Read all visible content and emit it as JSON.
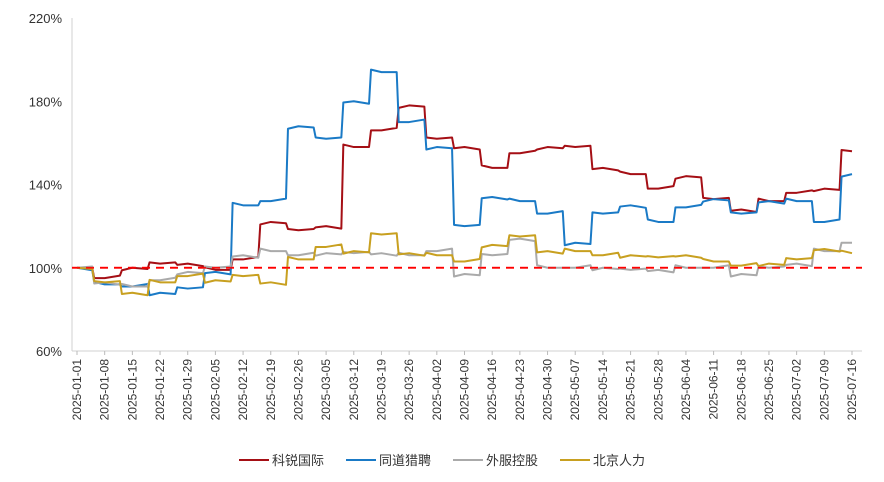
{
  "chart_data": {
    "type": "line",
    "title": "",
    "xlabel": "",
    "ylabel": "",
    "ylim": [
      0.6,
      2.2
    ],
    "y_ticks": [
      "60%",
      "100%",
      "140%",
      "180%",
      "220%"
    ],
    "x_ticks": [
      "2025-01-01",
      "2025-01-08",
      "2025-01-15",
      "2025-01-22",
      "2025-01-29",
      "2025-02-05",
      "2025-02-12",
      "2025-02-19",
      "2025-02-26",
      "2025-03-05",
      "2025-03-12",
      "2025-03-19",
      "2025-03-26",
      "2025-04-02",
      "2025-04-09",
      "2025-04-16",
      "2025-04-23",
      "2025-04-30",
      "2025-05-07",
      "2025-05-14",
      "2025-05-21",
      "2025-05-28",
      "2025-06-04",
      "2025-06-11",
      "2025-06-18",
      "2025-06-25",
      "2025-07-02",
      "2025-07-09",
      "2025-07-16"
    ],
    "grid": false,
    "legend_position": "bottom",
    "reference_line": {
      "value": 1.0,
      "color": "#ff0000",
      "style": "dashed"
    },
    "series": [
      {
        "name": "科锐国际",
        "color": "#a50f15",
        "values": [
          1.0,
          0.95,
          1.0,
          1.02,
          1.02,
          0.99,
          1.04,
          1.22,
          1.18,
          1.2,
          1.58,
          1.66,
          1.78,
          1.62,
          1.58,
          1.48,
          1.55,
          1.58,
          1.58,
          1.48,
          1.45,
          1.38,
          1.44,
          1.33,
          1.28,
          1.32,
          1.36,
          1.38,
          1.56
        ]
      },
      {
        "name": "同道猎聘",
        "color": "#1a7ac6",
        "values": [
          1.0,
          0.92,
          0.91,
          0.88,
          0.9,
          0.98,
          1.3,
          1.32,
          1.68,
          1.62,
          1.8,
          1.94,
          1.7,
          1.58,
          1.2,
          1.34,
          1.32,
          1.26,
          1.12,
          1.26,
          1.3,
          1.22,
          1.29,
          1.33,
          1.26,
          1.32,
          1.32,
          1.22,
          1.45
        ]
      },
      {
        "name": "外服控股",
        "color": "#aaaaaa",
        "values": [
          1.0,
          0.93,
          0.91,
          0.94,
          0.98,
          1.0,
          1.06,
          1.08,
          1.06,
          1.07,
          1.07,
          1.07,
          1.06,
          1.08,
          0.97,
          1.06,
          1.14,
          1.0,
          1.0,
          1.0,
          0.99,
          0.99,
          1.0,
          1.0,
          0.97,
          1.0,
          1.02,
          1.08,
          1.12
        ]
      },
      {
        "name": "北京人力",
        "color": "#c8a020",
        "values": [
          1.0,
          0.93,
          0.88,
          0.93,
          0.96,
          0.94,
          0.96,
          0.93,
          1.04,
          1.1,
          1.08,
          1.16,
          1.07,
          1.06,
          1.03,
          1.11,
          1.15,
          1.08,
          1.08,
          1.06,
          1.06,
          1.05,
          1.06,
          1.03,
          1.01,
          1.02,
          1.04,
          1.09,
          1.07
        ]
      }
    ]
  },
  "legend": {
    "items": [
      {
        "label": "科锐国际",
        "color": "#a50f15"
      },
      {
        "label": "同道猎聘",
        "color": "#1a7ac6"
      },
      {
        "label": "外服控股",
        "color": "#aaaaaa"
      },
      {
        "label": "北京人力",
        "color": "#c8a020"
      }
    ]
  }
}
